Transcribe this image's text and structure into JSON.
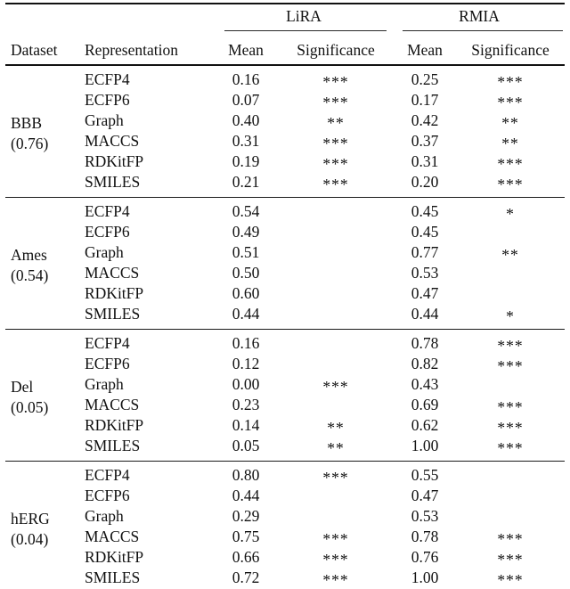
{
  "page": {
    "background": "#ffffff",
    "text_color": "#111111",
    "rule_color": "#111111"
  },
  "table": {
    "groups": [
      {
        "label": "LiRA"
      },
      {
        "label": "RMIA"
      }
    ],
    "columns": [
      "Dataset",
      "Representation",
      "Mean",
      "Significance",
      "Mean",
      "Significance"
    ],
    "blocks": [
      {
        "dataset": "BBB",
        "score": "(0.76)",
        "rows": [
          {
            "representation": "ECFP4",
            "lira": {
              "mean": "0.16",
              "significance": "***"
            },
            "rmia": {
              "mean": "0.25",
              "significance": "***"
            }
          },
          {
            "representation": "ECFP6",
            "lira": {
              "mean": "0.07",
              "significance": "***"
            },
            "rmia": {
              "mean": "0.17",
              "significance": "***"
            }
          },
          {
            "representation": "Graph",
            "lira": {
              "mean": "0.40",
              "significance": "**"
            },
            "rmia": {
              "mean": "0.42",
              "significance": "**"
            }
          },
          {
            "representation": "MACCS",
            "lira": {
              "mean": "0.31",
              "significance": "***"
            },
            "rmia": {
              "mean": "0.37",
              "significance": "**"
            }
          },
          {
            "representation": "RDKitFP",
            "lira": {
              "mean": "0.19",
              "significance": "***"
            },
            "rmia": {
              "mean": "0.31",
              "significance": "***"
            }
          },
          {
            "representation": "SMILES",
            "lira": {
              "mean": "0.21",
              "significance": "***"
            },
            "rmia": {
              "mean": "0.20",
              "significance": "***"
            }
          }
        ]
      },
      {
        "dataset": "Ames",
        "score": "(0.54)",
        "rows": [
          {
            "representation": "ECFP4",
            "lira": {
              "mean": "0.54",
              "significance": ""
            },
            "rmia": {
              "mean": "0.45",
              "significance": "*"
            }
          },
          {
            "representation": "ECFP6",
            "lira": {
              "mean": "0.49",
              "significance": ""
            },
            "rmia": {
              "mean": "0.45",
              "significance": ""
            }
          },
          {
            "representation": "Graph",
            "lira": {
              "mean": "0.51",
              "significance": ""
            },
            "rmia": {
              "mean": "0.77",
              "significance": "**"
            }
          },
          {
            "representation": "MACCS",
            "lira": {
              "mean": "0.50",
              "significance": ""
            },
            "rmia": {
              "mean": "0.53",
              "significance": ""
            }
          },
          {
            "representation": "RDKitFP",
            "lira": {
              "mean": "0.60",
              "significance": ""
            },
            "rmia": {
              "mean": "0.47",
              "significance": ""
            }
          },
          {
            "representation": "SMILES",
            "lira": {
              "mean": "0.44",
              "significance": ""
            },
            "rmia": {
              "mean": "0.44",
              "significance": "*"
            }
          }
        ]
      },
      {
        "dataset": "Del",
        "score": "(0.05)",
        "rows": [
          {
            "representation": "ECFP4",
            "lira": {
              "mean": "0.16",
              "significance": ""
            },
            "rmia": {
              "mean": "0.78",
              "significance": "***"
            }
          },
          {
            "representation": "ECFP6",
            "lira": {
              "mean": "0.12",
              "significance": ""
            },
            "rmia": {
              "mean": "0.82",
              "significance": "***"
            }
          },
          {
            "representation": "Graph",
            "lira": {
              "mean": "0.00",
              "significance": "***"
            },
            "rmia": {
              "mean": "0.43",
              "significance": ""
            }
          },
          {
            "representation": "MACCS",
            "lira": {
              "mean": "0.23",
              "significance": ""
            },
            "rmia": {
              "mean": "0.69",
              "significance": "***"
            }
          },
          {
            "representation": "RDKitFP",
            "lira": {
              "mean": "0.14",
              "significance": "**"
            },
            "rmia": {
              "mean": "0.62",
              "significance": "***"
            }
          },
          {
            "representation": "SMILES",
            "lira": {
              "mean": "0.05",
              "significance": "**"
            },
            "rmia": {
              "mean": "1.00",
              "significance": "***"
            }
          }
        ]
      },
      {
        "dataset": "hERG",
        "score": "(0.04)",
        "rows": [
          {
            "representation": "ECFP4",
            "lira": {
              "mean": "0.80",
              "significance": "***"
            },
            "rmia": {
              "mean": "0.55",
              "significance": ""
            }
          },
          {
            "representation": "ECFP6",
            "lira": {
              "mean": "0.44",
              "significance": ""
            },
            "rmia": {
              "mean": "0.47",
              "significance": ""
            }
          },
          {
            "representation": "Graph",
            "lira": {
              "mean": "0.29",
              "significance": ""
            },
            "rmia": {
              "mean": "0.53",
              "significance": ""
            }
          },
          {
            "representation": "MACCS",
            "lira": {
              "mean": "0.75",
              "significance": "***"
            },
            "rmia": {
              "mean": "0.78",
              "significance": "***"
            }
          },
          {
            "representation": "RDKitFP",
            "lira": {
              "mean": "0.66",
              "significance": "***"
            },
            "rmia": {
              "mean": "0.76",
              "significance": "***"
            }
          },
          {
            "representation": "SMILES",
            "lira": {
              "mean": "0.72",
              "significance": "***"
            },
            "rmia": {
              "mean": "1.00",
              "significance": "***"
            }
          }
        ]
      }
    ]
  }
}
